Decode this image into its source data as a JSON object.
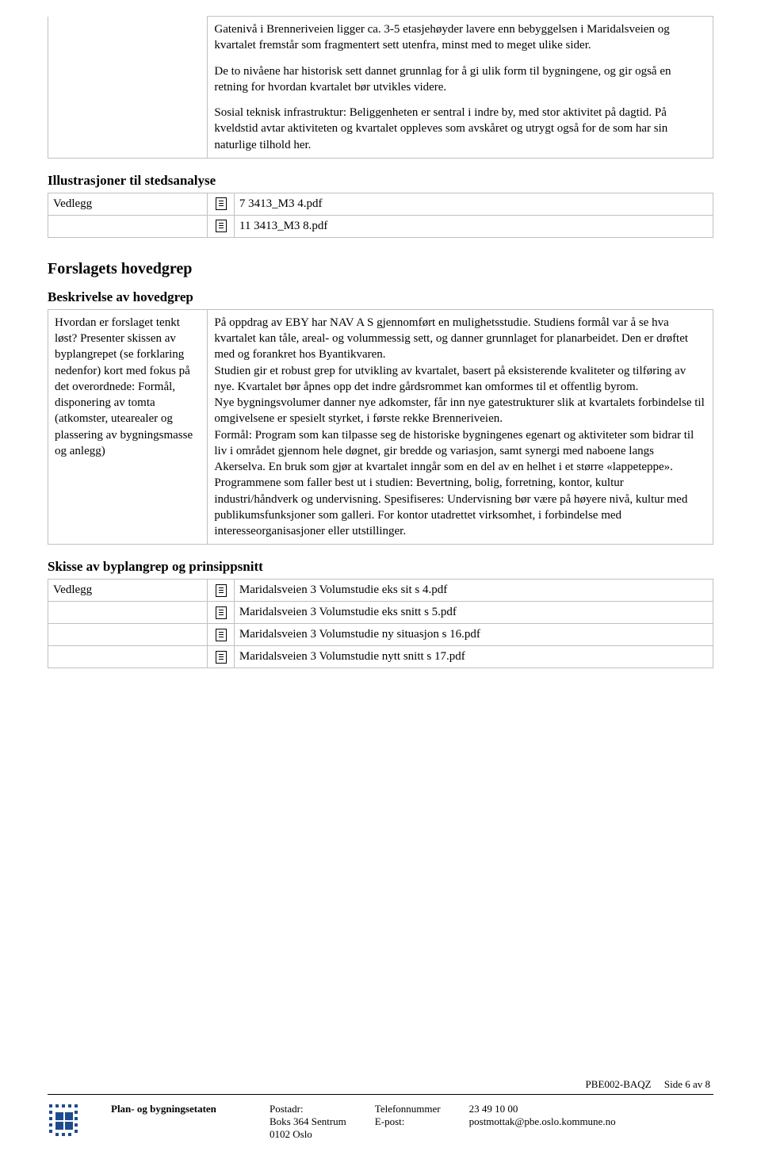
{
  "topSection": {
    "p1": "Gatenivå i Brenneriveien ligger ca. 3-5 etasjehøyder lavere enn bebyggelsen i Maridalsveien og kvartalet fremstår som fragmentert sett utenfra, minst med to meget ulike sider.",
    "p2": "De to nivåene har historisk sett dannet grunnlag for å gi ulik form til bygningene, og gir også en retning for hvordan kvartalet bør utvikles videre.",
    "p3": "Sosial teknisk infrastruktur: Beliggenheten er sentral i indre by, med stor aktivitet på dagtid. På kveldstid avtar aktiviteten og kvartalet oppleves som avskåret og utrygt også for de som har sin naturlige tilhold her."
  },
  "illus": {
    "heading": "Illustrasjoner til stedsanalyse",
    "vedlegg": "Vedlegg",
    "files": [
      "7 3413_M3 4.pdf",
      "11 3413_M3 8.pdf"
    ]
  },
  "hovedgrep": {
    "bigHeading": "Forslagets hovedgrep",
    "subHeading": "Beskrivelse av hovedgrep",
    "leftLabel": "Hvordan er forslaget tenkt løst? Presenter skissen av byplangrepet (se forklaring nedenfor) kort med fokus på det overordnede: Formål, disponering av tomta (atkomster, utearealer og plassering av bygningsmasse og anlegg)",
    "rightText": "På oppdrag av EBY har NAV A S gjennomført en mulighetsstudie. Studiens formål var å se hva kvartalet kan tåle, areal- og volummessig sett, og danner grunnlaget for planarbeidet. Den er drøftet med og forankret hos Byantikvaren.\nStudien gir et robust grep for utvikling av kvartalet, basert på eksisterende kvaliteter og tilføring av nye. Kvartalet bør åpnes opp det indre gårdsrommet kan omformes til et offentlig byrom.\nNye bygningsvolumer danner nye adkomster, får inn nye gatestrukturer slik at kvartalets forbindelse til omgivelsene er spesielt styrket, i første rekke Brenneriveien.\nFormål: Program som kan tilpasse seg de historiske bygningenes egenart og aktiviteter som bidrar til liv i området gjennom hele døgnet, gir bredde og variasjon, samt synergi med naboene langs Akerselva. En bruk som gjør at kvartalet inngår som en del av en helhet i et større «lappeteppe».\nProgrammene som faller best ut i studien: Bevertning, bolig, forretning, kontor, kultur industri/håndverk og undervisning. Spesifiseres: Undervisning bør være på høyere nivå, kultur med publikumsfunksjoner som galleri. For kontor utadrettet virksomhet, i forbindelse med interesseorganisasjoner eller utstillinger."
  },
  "skisse": {
    "heading": "Skisse av byplangrep og prinsippsnitt",
    "vedlegg": "Vedlegg",
    "files": [
      "Maridalsveien 3 Volumstudie eks sit s 4.pdf",
      "Maridalsveien 3 Volumstudie eks snitt s 5.pdf",
      "Maridalsveien 3 Volumstudie ny situasjon s 16.pdf",
      "Maridalsveien 3 Volumstudie nytt snitt s 17.pdf"
    ]
  },
  "footer": {
    "code": "PBE002-BAQZ",
    "pageLabel": "Side 6 av 8",
    "org": "Plan- og bygningsetaten",
    "postadrLabel": "Postadr:",
    "postadr1": "Boks 364 Sentrum",
    "postadr2": "0102 Oslo",
    "tlfLabel": "Telefonnummer",
    "epostLabel": "E-post:",
    "tlf": "23 49 10 00",
    "epost": "postmottak@pbe.oslo.kommune.no"
  },
  "colors": {
    "tableBorder": "#c0c0c0",
    "text": "#000000",
    "logoBlue": "#1e4b8f"
  }
}
